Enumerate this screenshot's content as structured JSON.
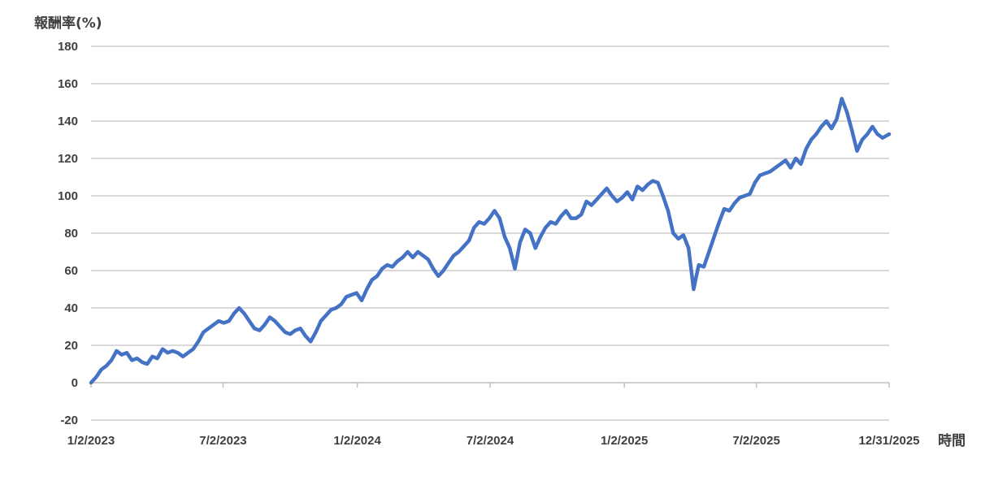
{
  "chart_data": {
    "type": "line",
    "title": "",
    "ylabel": "報酬率(%)",
    "xlabel": "時間",
    "ylim": [
      -20,
      180
    ],
    "yticks": [
      -20,
      0,
      20,
      40,
      60,
      80,
      100,
      120,
      140,
      160,
      180
    ],
    "xlim": [
      "2023-01-02",
      "2025-12-31"
    ],
    "xtick_labels": [
      "1/2/2023",
      "7/2/2023",
      "1/2/2024",
      "7/2/2024",
      "1/2/2025",
      "7/2/2025",
      "12/31/2025"
    ],
    "xtick_dates": [
      "2023-01-02",
      "2023-07-02",
      "2024-01-02",
      "2024-07-02",
      "2025-01-02",
      "2025-07-02",
      "2025-12-31"
    ],
    "grid": "horizontal",
    "line_color": "#4472C4",
    "series": [
      {
        "name": "",
        "points": [
          [
            "2023-01-02",
            0
          ],
          [
            "2023-01-09",
            3
          ],
          [
            "2023-01-16",
            7
          ],
          [
            "2023-01-23",
            9
          ],
          [
            "2023-01-30",
            12
          ],
          [
            "2023-02-06",
            17
          ],
          [
            "2023-02-13",
            15
          ],
          [
            "2023-02-20",
            16
          ],
          [
            "2023-02-27",
            12
          ],
          [
            "2023-03-06",
            13
          ],
          [
            "2023-03-13",
            11
          ],
          [
            "2023-03-20",
            10
          ],
          [
            "2023-03-27",
            14
          ],
          [
            "2023-04-03",
            13
          ],
          [
            "2023-04-10",
            18
          ],
          [
            "2023-04-17",
            16
          ],
          [
            "2023-04-24",
            17
          ],
          [
            "2023-05-01",
            16
          ],
          [
            "2023-05-08",
            14
          ],
          [
            "2023-05-15",
            16
          ],
          [
            "2023-05-22",
            18
          ],
          [
            "2023-05-29",
            22
          ],
          [
            "2023-06-05",
            27
          ],
          [
            "2023-06-12",
            29
          ],
          [
            "2023-06-19",
            31
          ],
          [
            "2023-06-26",
            33
          ],
          [
            "2023-07-03",
            32
          ],
          [
            "2023-07-10",
            33
          ],
          [
            "2023-07-17",
            37
          ],
          [
            "2023-07-24",
            40
          ],
          [
            "2023-07-31",
            37
          ],
          [
            "2023-08-07",
            33
          ],
          [
            "2023-08-14",
            29
          ],
          [
            "2023-08-21",
            28
          ],
          [
            "2023-08-28",
            31
          ],
          [
            "2023-09-04",
            35
          ],
          [
            "2023-09-11",
            33
          ],
          [
            "2023-09-18",
            30
          ],
          [
            "2023-09-25",
            27
          ],
          [
            "2023-10-02",
            26
          ],
          [
            "2023-10-09",
            28
          ],
          [
            "2023-10-16",
            29
          ],
          [
            "2023-10-23",
            25
          ],
          [
            "2023-10-30",
            22
          ],
          [
            "2023-11-06",
            27
          ],
          [
            "2023-11-13",
            33
          ],
          [
            "2023-11-20",
            36
          ],
          [
            "2023-11-27",
            39
          ],
          [
            "2023-12-04",
            40
          ],
          [
            "2023-12-11",
            42
          ],
          [
            "2023-12-18",
            46
          ],
          [
            "2023-12-25",
            47
          ],
          [
            "2024-01-01",
            48
          ],
          [
            "2024-01-08",
            44
          ],
          [
            "2024-01-15",
            50
          ],
          [
            "2024-01-22",
            55
          ],
          [
            "2024-01-29",
            57
          ],
          [
            "2024-02-05",
            61
          ],
          [
            "2024-02-12",
            63
          ],
          [
            "2024-02-19",
            62
          ],
          [
            "2024-02-26",
            65
          ],
          [
            "2024-03-04",
            67
          ],
          [
            "2024-03-11",
            70
          ],
          [
            "2024-03-18",
            67
          ],
          [
            "2024-03-25",
            70
          ],
          [
            "2024-04-01",
            68
          ],
          [
            "2024-04-08",
            66
          ],
          [
            "2024-04-15",
            61
          ],
          [
            "2024-04-22",
            57
          ],
          [
            "2024-04-29",
            60
          ],
          [
            "2024-05-06",
            64
          ],
          [
            "2024-05-13",
            68
          ],
          [
            "2024-05-20",
            70
          ],
          [
            "2024-05-27",
            73
          ],
          [
            "2024-06-03",
            76
          ],
          [
            "2024-06-10",
            83
          ],
          [
            "2024-06-17",
            86
          ],
          [
            "2024-06-24",
            85
          ],
          [
            "2024-07-01",
            88
          ],
          [
            "2024-07-08",
            92
          ],
          [
            "2024-07-15",
            88
          ],
          [
            "2024-07-22",
            78
          ],
          [
            "2024-07-29",
            72
          ],
          [
            "2024-08-05",
            61
          ],
          [
            "2024-08-12",
            75
          ],
          [
            "2024-08-19",
            82
          ],
          [
            "2024-08-26",
            80
          ],
          [
            "2024-09-02",
            72
          ],
          [
            "2024-09-09",
            78
          ],
          [
            "2024-09-16",
            83
          ],
          [
            "2024-09-23",
            86
          ],
          [
            "2024-09-30",
            85
          ],
          [
            "2024-10-07",
            89
          ],
          [
            "2024-10-14",
            92
          ],
          [
            "2024-10-21",
            88
          ],
          [
            "2024-10-28",
            88
          ],
          [
            "2024-11-04",
            90
          ],
          [
            "2024-11-11",
            97
          ],
          [
            "2024-11-18",
            95
          ],
          [
            "2024-11-25",
            98
          ],
          [
            "2024-12-02",
            101
          ],
          [
            "2024-12-09",
            104
          ],
          [
            "2024-12-16",
            100
          ],
          [
            "2024-12-23",
            97
          ],
          [
            "2024-12-30",
            99
          ],
          [
            "2025-01-06",
            102
          ],
          [
            "2025-01-13",
            98
          ],
          [
            "2025-01-20",
            105
          ],
          [
            "2025-01-27",
            103
          ],
          [
            "2025-02-03",
            106
          ],
          [
            "2025-02-10",
            108
          ],
          [
            "2025-02-17",
            107
          ],
          [
            "2025-02-24",
            100
          ],
          [
            "2025-03-03",
            92
          ],
          [
            "2025-03-10",
            80
          ],
          [
            "2025-03-17",
            77
          ],
          [
            "2025-03-24",
            79
          ],
          [
            "2025-03-31",
            72
          ],
          [
            "2025-04-07",
            50
          ],
          [
            "2025-04-14",
            63
          ],
          [
            "2025-04-21",
            62
          ],
          [
            "2025-04-28",
            70
          ],
          [
            "2025-05-05",
            78
          ],
          [
            "2025-05-12",
            86
          ],
          [
            "2025-05-19",
            93
          ],
          [
            "2025-05-26",
            92
          ],
          [
            "2025-06-02",
            96
          ],
          [
            "2025-06-09",
            99
          ],
          [
            "2025-06-16",
            100
          ],
          [
            "2025-06-23",
            101
          ],
          [
            "2025-06-30",
            107
          ],
          [
            "2025-07-07",
            111
          ],
          [
            "2025-07-14",
            112
          ],
          [
            "2025-07-21",
            113
          ],
          [
            "2025-07-28",
            115
          ],
          [
            "2025-08-04",
            117
          ],
          [
            "2025-08-11",
            119
          ],
          [
            "2025-08-18",
            115
          ],
          [
            "2025-08-25",
            120
          ],
          [
            "2025-09-01",
            117
          ],
          [
            "2025-09-08",
            125
          ],
          [
            "2025-09-15",
            130
          ],
          [
            "2025-09-22",
            133
          ],
          [
            "2025-09-29",
            137
          ],
          [
            "2025-10-06",
            140
          ],
          [
            "2025-10-13",
            136
          ],
          [
            "2025-10-20",
            141
          ],
          [
            "2025-10-27",
            152
          ],
          [
            "2025-11-03",
            145
          ],
          [
            "2025-11-10",
            135
          ],
          [
            "2025-11-17",
            124
          ],
          [
            "2025-11-24",
            130
          ],
          [
            "2025-12-01",
            133
          ],
          [
            "2025-12-08",
            137
          ],
          [
            "2025-12-15",
            133
          ],
          [
            "2025-12-22",
            131
          ],
          [
            "2025-12-31",
            133
          ]
        ]
      }
    ]
  }
}
